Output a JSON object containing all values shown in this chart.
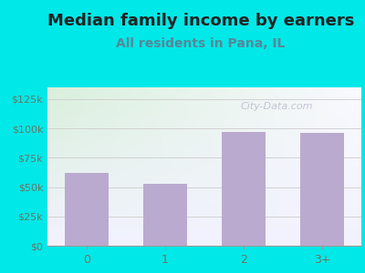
{
  "title": "Median family income by earners",
  "subtitle": "All residents in Pana, IL",
  "categories": [
    "0",
    "1",
    "2",
    "3+"
  ],
  "values": [
    62000,
    53000,
    97000,
    96000
  ],
  "bar_color": "#bbaacf",
  "title_fontsize": 13,
  "subtitle_fontsize": 10,
  "subtitle_color": "#558899",
  "title_color": "#222222",
  "background_outer": "#00e8e8",
  "background_inner_topleft": "#d8eeda",
  "background_inner_topright": "#f0f0f8",
  "background_inner_bottom": "#f8f8ff",
  "yticks": [
    0,
    25000,
    50000,
    75000,
    100000,
    125000
  ],
  "ytick_labels": [
    "$0",
    "$25k",
    "$50k",
    "$75k",
    "$100k",
    "$125k"
  ],
  "ylim": [
    0,
    135000
  ],
  "tick_color": "#667766",
  "watermark": "City-Data.com",
  "watermark_color": "#bbbbcc",
  "grid_color": "#cccccc"
}
